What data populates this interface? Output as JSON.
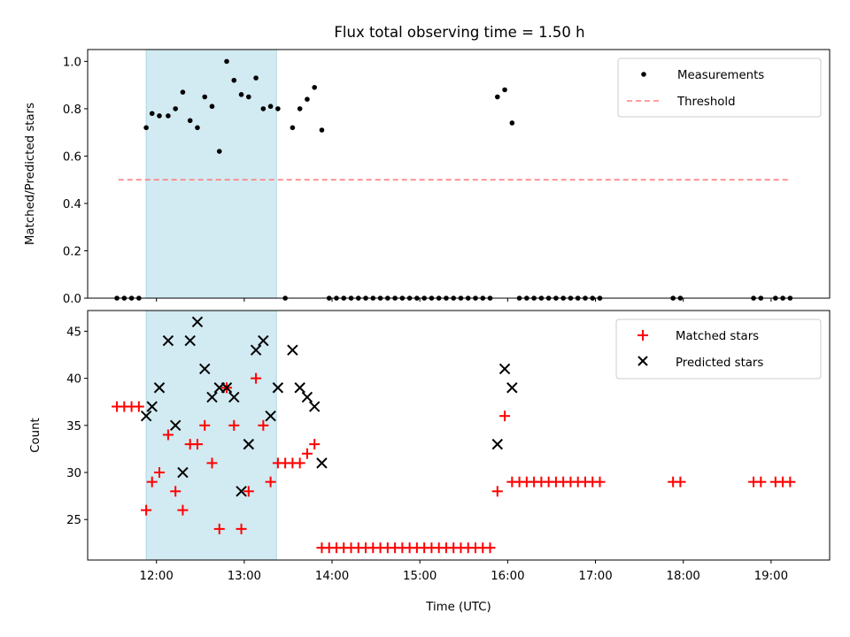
{
  "chart_data": [
    {
      "type": "scatter",
      "title": "Flux total observing time = 1.50 h",
      "ylabel": "Matched/Predicted stars",
      "xlabel": "",
      "xlim": [
        "11:13",
        "19:40"
      ],
      "ylim": [
        0,
        1.05
      ],
      "yticks": [
        "0.0",
        "0.2",
        "0.4",
        "0.6",
        "0.8",
        "1.0"
      ],
      "legend": {
        "position": "top-right",
        "entries": [
          "Measurements",
          "Threshold"
        ]
      },
      "shaded_interval": {
        "start": "11:53",
        "end": "13:22",
        "color": "#add8e6"
      },
      "threshold": {
        "name": "Threshold",
        "value": 0.5,
        "x_range": [
          "11:34",
          "19:12"
        ],
        "color": "#ff7f7f",
        "style": "dashed"
      },
      "series": [
        {
          "name": "Measurements",
          "marker": "dot",
          "color": "#000000",
          "x": [
            "11:33",
            "11:38",
            "11:43",
            "11:48",
            "11:53",
            "11:57",
            "12:02",
            "12:08",
            "12:13",
            "12:18",
            "12:23",
            "12:28",
            "12:33",
            "12:38",
            "12:43",
            "12:48",
            "12:53",
            "12:58",
            "13:03",
            "13:08",
            "13:13",
            "13:18",
            "13:23",
            "13:28",
            "13:33",
            "13:38",
            "13:43",
            "13:48",
            "13:53",
            "13:58",
            "14:03",
            "14:08",
            "14:13",
            "14:18",
            "14:23",
            "14:28",
            "14:33",
            "14:38",
            "14:43",
            "14:48",
            "14:53",
            "14:58",
            "15:03",
            "15:08",
            "15:13",
            "15:18",
            "15:23",
            "15:28",
            "15:33",
            "15:38",
            "15:43",
            "15:48",
            "15:53",
            "15:58",
            "16:03",
            "16:08",
            "16:13",
            "16:18",
            "16:23",
            "16:28",
            "16:33",
            "16:38",
            "16:43",
            "16:48",
            "16:53",
            "16:58",
            "17:03",
            "17:53",
            "17:58",
            "18:48",
            "18:53",
            "19:03",
            "19:08",
            "19:13"
          ],
          "y": [
            0,
            0,
            0,
            0,
            0.72,
            0.78,
            0.77,
            0.77,
            0.8,
            0.87,
            0.75,
            0.72,
            0.85,
            0.81,
            0.62,
            1.0,
            0.92,
            0.86,
            0.85,
            0.93,
            0.8,
            0.81,
            0.8,
            0,
            0.72,
            0.8,
            0.84,
            0.89,
            0.71,
            0,
            0,
            0,
            0,
            0,
            0,
            0,
            0,
            0,
            0,
            0,
            0,
            0,
            0,
            0,
            0,
            0,
            0,
            0,
            0,
            0,
            0,
            0,
            0.85,
            0.88,
            0.74,
            0,
            0,
            0,
            0,
            0,
            0,
            0,
            0,
            0,
            0,
            0,
            0,
            0,
            0,
            0,
            0,
            0,
            0,
            0
          ]
        }
      ]
    },
    {
      "type": "scatter",
      "title": "",
      "ylabel": "Count",
      "xlabel": "Time (UTC)",
      "xlim": [
        "11:13",
        "19:40"
      ],
      "ylim": [
        20.7,
        47.2
      ],
      "yticks": [
        "25",
        "30",
        "35",
        "40",
        "45"
      ],
      "xticks": [
        "12:00",
        "13:00",
        "14:00",
        "15:00",
        "16:00",
        "17:00",
        "18:00",
        "19:00"
      ],
      "legend": {
        "position": "top-right",
        "entries": [
          "Matched stars",
          "Predicted stars"
        ]
      },
      "shaded_interval": {
        "start": "11:53",
        "end": "13:22",
        "color": "#add8e6"
      },
      "series": [
        {
          "name": "Matched stars",
          "marker": "plus",
          "color": "#ff0000",
          "x": [
            "11:33",
            "11:38",
            "11:43",
            "11:48",
            "11:53",
            "11:57",
            "12:02",
            "12:08",
            "12:13",
            "12:18",
            "12:23",
            "12:28",
            "12:33",
            "12:38",
            "12:43",
            "12:48",
            "12:53",
            "12:58",
            "13:03",
            "13:08",
            "13:13",
            "13:18",
            "13:23",
            "13:28",
            "13:33",
            "13:38",
            "13:43",
            "13:48",
            "13:53",
            "13:58",
            "14:03",
            "14:08",
            "14:13",
            "14:18",
            "14:23",
            "14:28",
            "14:33",
            "14:38",
            "14:43",
            "14:48",
            "14:53",
            "14:58",
            "15:03",
            "15:08",
            "15:13",
            "15:18",
            "15:23",
            "15:28",
            "15:33",
            "15:38",
            "15:43",
            "15:48",
            "15:53",
            "15:58",
            "16:03",
            "16:08",
            "16:13",
            "16:18",
            "16:23",
            "16:28",
            "16:33",
            "16:38",
            "16:43",
            "16:48",
            "16:53",
            "16:58",
            "17:03",
            "17:53",
            "17:58",
            "18:48",
            "18:53",
            "19:03",
            "19:08",
            "19:13"
          ],
          "y": [
            37,
            37,
            37,
            37,
            26,
            29,
            30,
            34,
            28,
            26,
            33,
            33,
            35,
            31,
            24,
            39,
            35,
            24,
            28,
            40,
            35,
            29,
            31,
            31,
            31,
            31,
            32,
            33,
            22,
            22,
            22,
            22,
            22,
            22,
            22,
            22,
            22,
            22,
            22,
            22,
            22,
            22,
            22,
            22,
            22,
            22,
            22,
            22,
            22,
            22,
            22,
            22,
            28,
            36,
            29,
            29,
            29,
            29,
            29,
            29,
            29,
            29,
            29,
            29,
            29,
            29,
            29,
            29,
            29,
            29,
            29,
            29,
            29,
            29
          ]
        },
        {
          "name": "Predicted stars",
          "marker": "x",
          "color": "#000000",
          "x": [
            "11:53",
            "11:57",
            "12:02",
            "12:08",
            "12:13",
            "12:18",
            "12:23",
            "12:28",
            "12:33",
            "12:38",
            "12:43",
            "12:48",
            "12:53",
            "12:58",
            "13:03",
            "13:08",
            "13:13",
            "13:18",
            "13:23",
            "13:33",
            "13:38",
            "13:43",
            "13:48",
            "13:53",
            "15:53",
            "15:58",
            "16:03"
          ],
          "y": [
            36,
            37,
            39,
            44,
            35,
            30,
            44,
            46,
            41,
            38,
            39,
            39,
            38,
            28,
            33,
            43,
            44,
            36,
            39,
            43,
            39,
            38,
            37,
            31,
            33,
            41,
            39
          ]
        }
      ]
    }
  ]
}
